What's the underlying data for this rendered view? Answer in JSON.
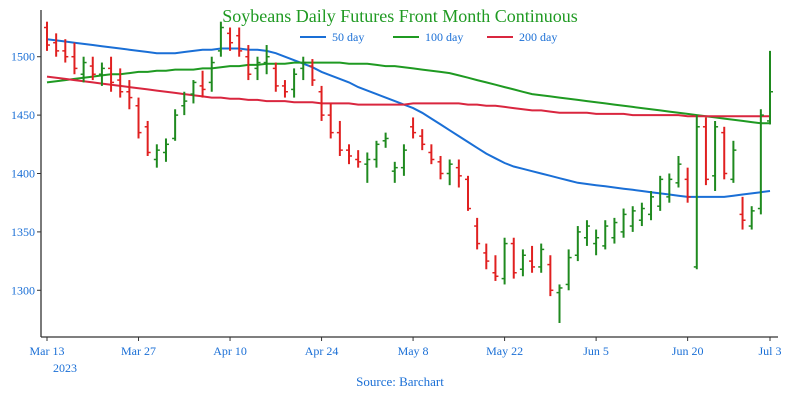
{
  "chart_data": {
    "type": "ohlc",
    "title": "Soybeans Daily Futures Front Month Continuous",
    "source": "Source: Barchart",
    "ylim": [
      1260,
      1540
    ],
    "yticks": [
      1300,
      1350,
      1400,
      1450,
      1500
    ],
    "x_axis": {
      "first_date": "2023-03-13",
      "tick_labels": [
        "Mar 13",
        "Mar 27",
        "Apr 10",
        "Apr 24",
        "May 8",
        "May 22",
        "Jun 5",
        "Jun 20",
        "Jul 3"
      ],
      "tick_index": [
        0,
        10,
        20,
        30,
        40,
        50,
        60,
        70,
        79
      ],
      "year_label": "2023"
    },
    "legend": {
      "position": "top-center",
      "items": [
        {
          "label": "50 day",
          "color": "#1a6fd6"
        },
        {
          "label": "100 day",
          "color": "#1f9a22"
        },
        {
          "label": "200 day",
          "color": "#d9263f"
        }
      ]
    },
    "colors": {
      "up": "#1f8a1f",
      "down": "#e02020",
      "axis": "#333333",
      "label": "#1a6fd6",
      "title": "#1f9a22"
    },
    "ohlc": [
      [
        1525,
        1530,
        1505,
        1510
      ],
      [
        1512,
        1520,
        1500,
        1505
      ],
      [
        1505,
        1515,
        1495,
        1500
      ],
      [
        1500,
        1512,
        1485,
        1490
      ],
      [
        1485,
        1500,
        1478,
        1495
      ],
      [
        1492,
        1500,
        1480,
        1485
      ],
      [
        1485,
        1495,
        1475,
        1490
      ],
      [
        1490,
        1500,
        1470,
        1478
      ],
      [
        1480,
        1490,
        1465,
        1470
      ],
      [
        1470,
        1480,
        1455,
        1465
      ],
      [
        1458,
        1465,
        1430,
        1435
      ],
      [
        1440,
        1445,
        1415,
        1418
      ],
      [
        1412,
        1425,
        1405,
        1420
      ],
      [
        1418,
        1430,
        1410,
        1425
      ],
      [
        1430,
        1455,
        1428,
        1450
      ],
      [
        1458,
        1470,
        1450,
        1462
      ],
      [
        1468,
        1480,
        1460,
        1478
      ],
      [
        1475,
        1488,
        1465,
        1472
      ],
      [
        1478,
        1500,
        1470,
        1495
      ],
      [
        1505,
        1530,
        1500,
        1525
      ],
      [
        1520,
        1525,
        1505,
        1512
      ],
      [
        1518,
        1525,
        1500,
        1505
      ],
      [
        1500,
        1510,
        1480,
        1485
      ],
      [
        1490,
        1500,
        1480,
        1495
      ],
      [
        1495,
        1510,
        1485,
        1500
      ],
      [
        1490,
        1495,
        1470,
        1475
      ],
      [
        1475,
        1480,
        1465,
        1470
      ],
      [
        1472,
        1490,
        1465,
        1485
      ],
      [
        1490,
        1500,
        1480,
        1495
      ],
      [
        1492,
        1498,
        1475,
        1480
      ],
      [
        1470,
        1475,
        1445,
        1450
      ],
      [
        1450,
        1460,
        1430,
        1435
      ],
      [
        1435,
        1445,
        1415,
        1420
      ],
      [
        1420,
        1425,
        1408,
        1415
      ],
      [
        1412,
        1420,
        1405,
        1410
      ],
      [
        1408,
        1418,
        1392,
        1412
      ],
      [
        1412,
        1428,
        1405,
        1425
      ],
      [
        1428,
        1435,
        1422,
        1430
      ],
      [
        1402,
        1410,
        1392,
        1405
      ],
      [
        1405,
        1425,
        1398,
        1420
      ],
      [
        1440,
        1448,
        1430,
        1435
      ],
      [
        1432,
        1438,
        1420,
        1425
      ],
      [
        1418,
        1425,
        1408,
        1412
      ],
      [
        1410,
        1415,
        1395,
        1400
      ],
      [
        1400,
        1412,
        1390,
        1408
      ],
      [
        1405,
        1412,
        1388,
        1398
      ],
      [
        1395,
        1398,
        1368,
        1370
      ],
      [
        1355,
        1362,
        1335,
        1340
      ],
      [
        1332,
        1340,
        1318,
        1325
      ],
      [
        1315,
        1330,
        1308,
        1312
      ],
      [
        1310,
        1345,
        1305,
        1340
      ],
      [
        1340,
        1345,
        1310,
        1315
      ],
      [
        1318,
        1335,
        1312,
        1330
      ],
      [
        1325,
        1338,
        1315,
        1320
      ],
      [
        1320,
        1340,
        1315,
        1335
      ],
      [
        1322,
        1330,
        1295,
        1300
      ],
      [
        1298,
        1305,
        1272,
        1302
      ],
      [
        1305,
        1335,
        1300,
        1328
      ],
      [
        1330,
        1355,
        1325,
        1350
      ],
      [
        1345,
        1360,
        1338,
        1355
      ],
      [
        1340,
        1352,
        1330,
        1345
      ],
      [
        1338,
        1360,
        1335,
        1355
      ],
      [
        1345,
        1362,
        1340,
        1358
      ],
      [
        1350,
        1370,
        1345,
        1365
      ],
      [
        1355,
        1372,
        1350,
        1368
      ],
      [
        1360,
        1375,
        1355,
        1370
      ],
      [
        1365,
        1385,
        1360,
        1380
      ],
      [
        1372,
        1398,
        1368,
        1395
      ],
      [
        1380,
        1400,
        1375,
        1395
      ],
      [
        1392,
        1415,
        1388,
        1408
      ],
      [
        1395,
        1405,
        1375,
        1380
      ],
      [
        1320,
        1450,
        1318,
        1440
      ],
      [
        1440,
        1448,
        1390,
        1395
      ],
      [
        1398,
        1445,
        1385,
        1440
      ],
      [
        1435,
        1440,
        1395,
        1400
      ],
      [
        1395,
        1428,
        1392,
        1420
      ],
      [
        1365,
        1380,
        1352,
        1360
      ],
      [
        1355,
        1372,
        1352,
        1368
      ],
      [
        1370,
        1455,
        1365,
        1450
      ],
      [
        1445,
        1505,
        1442,
        1470
      ]
    ],
    "series": [
      {
        "name": "50 day",
        "color": "#1a6fd6",
        "values": [
          1515,
          1514,
          1513,
          1512,
          1511,
          1510,
          1509,
          1508,
          1507,
          1506,
          1505,
          1504,
          1503,
          1503,
          1503,
          1504,
          1505,
          1506,
          1506,
          1507,
          1507,
          1507,
          1506,
          1506,
          1505,
          1503,
          1500,
          1497,
          1494,
          1491,
          1487,
          1484,
          1481,
          1478,
          1474,
          1471,
          1468,
          1465,
          1462,
          1459,
          1456,
          1452,
          1447,
          1442,
          1437,
          1432,
          1427,
          1422,
          1417,
          1413,
          1409,
          1406,
          1404,
          1402,
          1400,
          1398,
          1396,
          1394,
          1392,
          1391,
          1390,
          1389,
          1388,
          1387,
          1386,
          1385,
          1384,
          1383,
          1382,
          1381,
          1380,
          1380,
          1380,
          1380,
          1380,
          1381,
          1382,
          1383,
          1384,
          1385
        ]
      },
      {
        "name": "100 day",
        "color": "#1f9a22",
        "values": [
          1478,
          1479,
          1480,
          1481,
          1482,
          1483,
          1484,
          1485,
          1485,
          1486,
          1487,
          1487,
          1488,
          1488,
          1489,
          1489,
          1489,
          1490,
          1490,
          1491,
          1492,
          1492,
          1493,
          1493,
          1494,
          1494,
          1494,
          1495,
          1495,
          1495,
          1495,
          1495,
          1495,
          1494,
          1494,
          1494,
          1493,
          1492,
          1492,
          1491,
          1490,
          1489,
          1488,
          1487,
          1486,
          1484,
          1482,
          1480,
          1478,
          1476,
          1474,
          1472,
          1470,
          1468,
          1467,
          1466,
          1465,
          1464,
          1463,
          1462,
          1461,
          1460,
          1459,
          1458,
          1457,
          1456,
          1455,
          1454,
          1453,
          1452,
          1451,
          1450,
          1449,
          1448,
          1447,
          1446,
          1445,
          1444,
          1443,
          1443
        ]
      },
      {
        "name": "200 day",
        "color": "#d9263f",
        "values": [
          1483,
          1482,
          1481,
          1480,
          1479,
          1478,
          1477,
          1476,
          1475,
          1474,
          1473,
          1472,
          1471,
          1470,
          1469,
          1468,
          1467,
          1466,
          1465,
          1465,
          1464,
          1464,
          1463,
          1463,
          1462,
          1462,
          1462,
          1461,
          1461,
          1461,
          1460,
          1460,
          1460,
          1460,
          1459,
          1459,
          1459,
          1459,
          1459,
          1459,
          1460,
          1460,
          1460,
          1460,
          1460,
          1460,
          1459,
          1459,
          1458,
          1458,
          1457,
          1456,
          1455,
          1454,
          1454,
          1453,
          1452,
          1452,
          1452,
          1452,
          1451,
          1451,
          1451,
          1451,
          1450,
          1450,
          1450,
          1450,
          1450,
          1450,
          1449,
          1449,
          1449,
          1449,
          1449,
          1449,
          1449,
          1449,
          1449,
          1449
        ]
      }
    ]
  }
}
